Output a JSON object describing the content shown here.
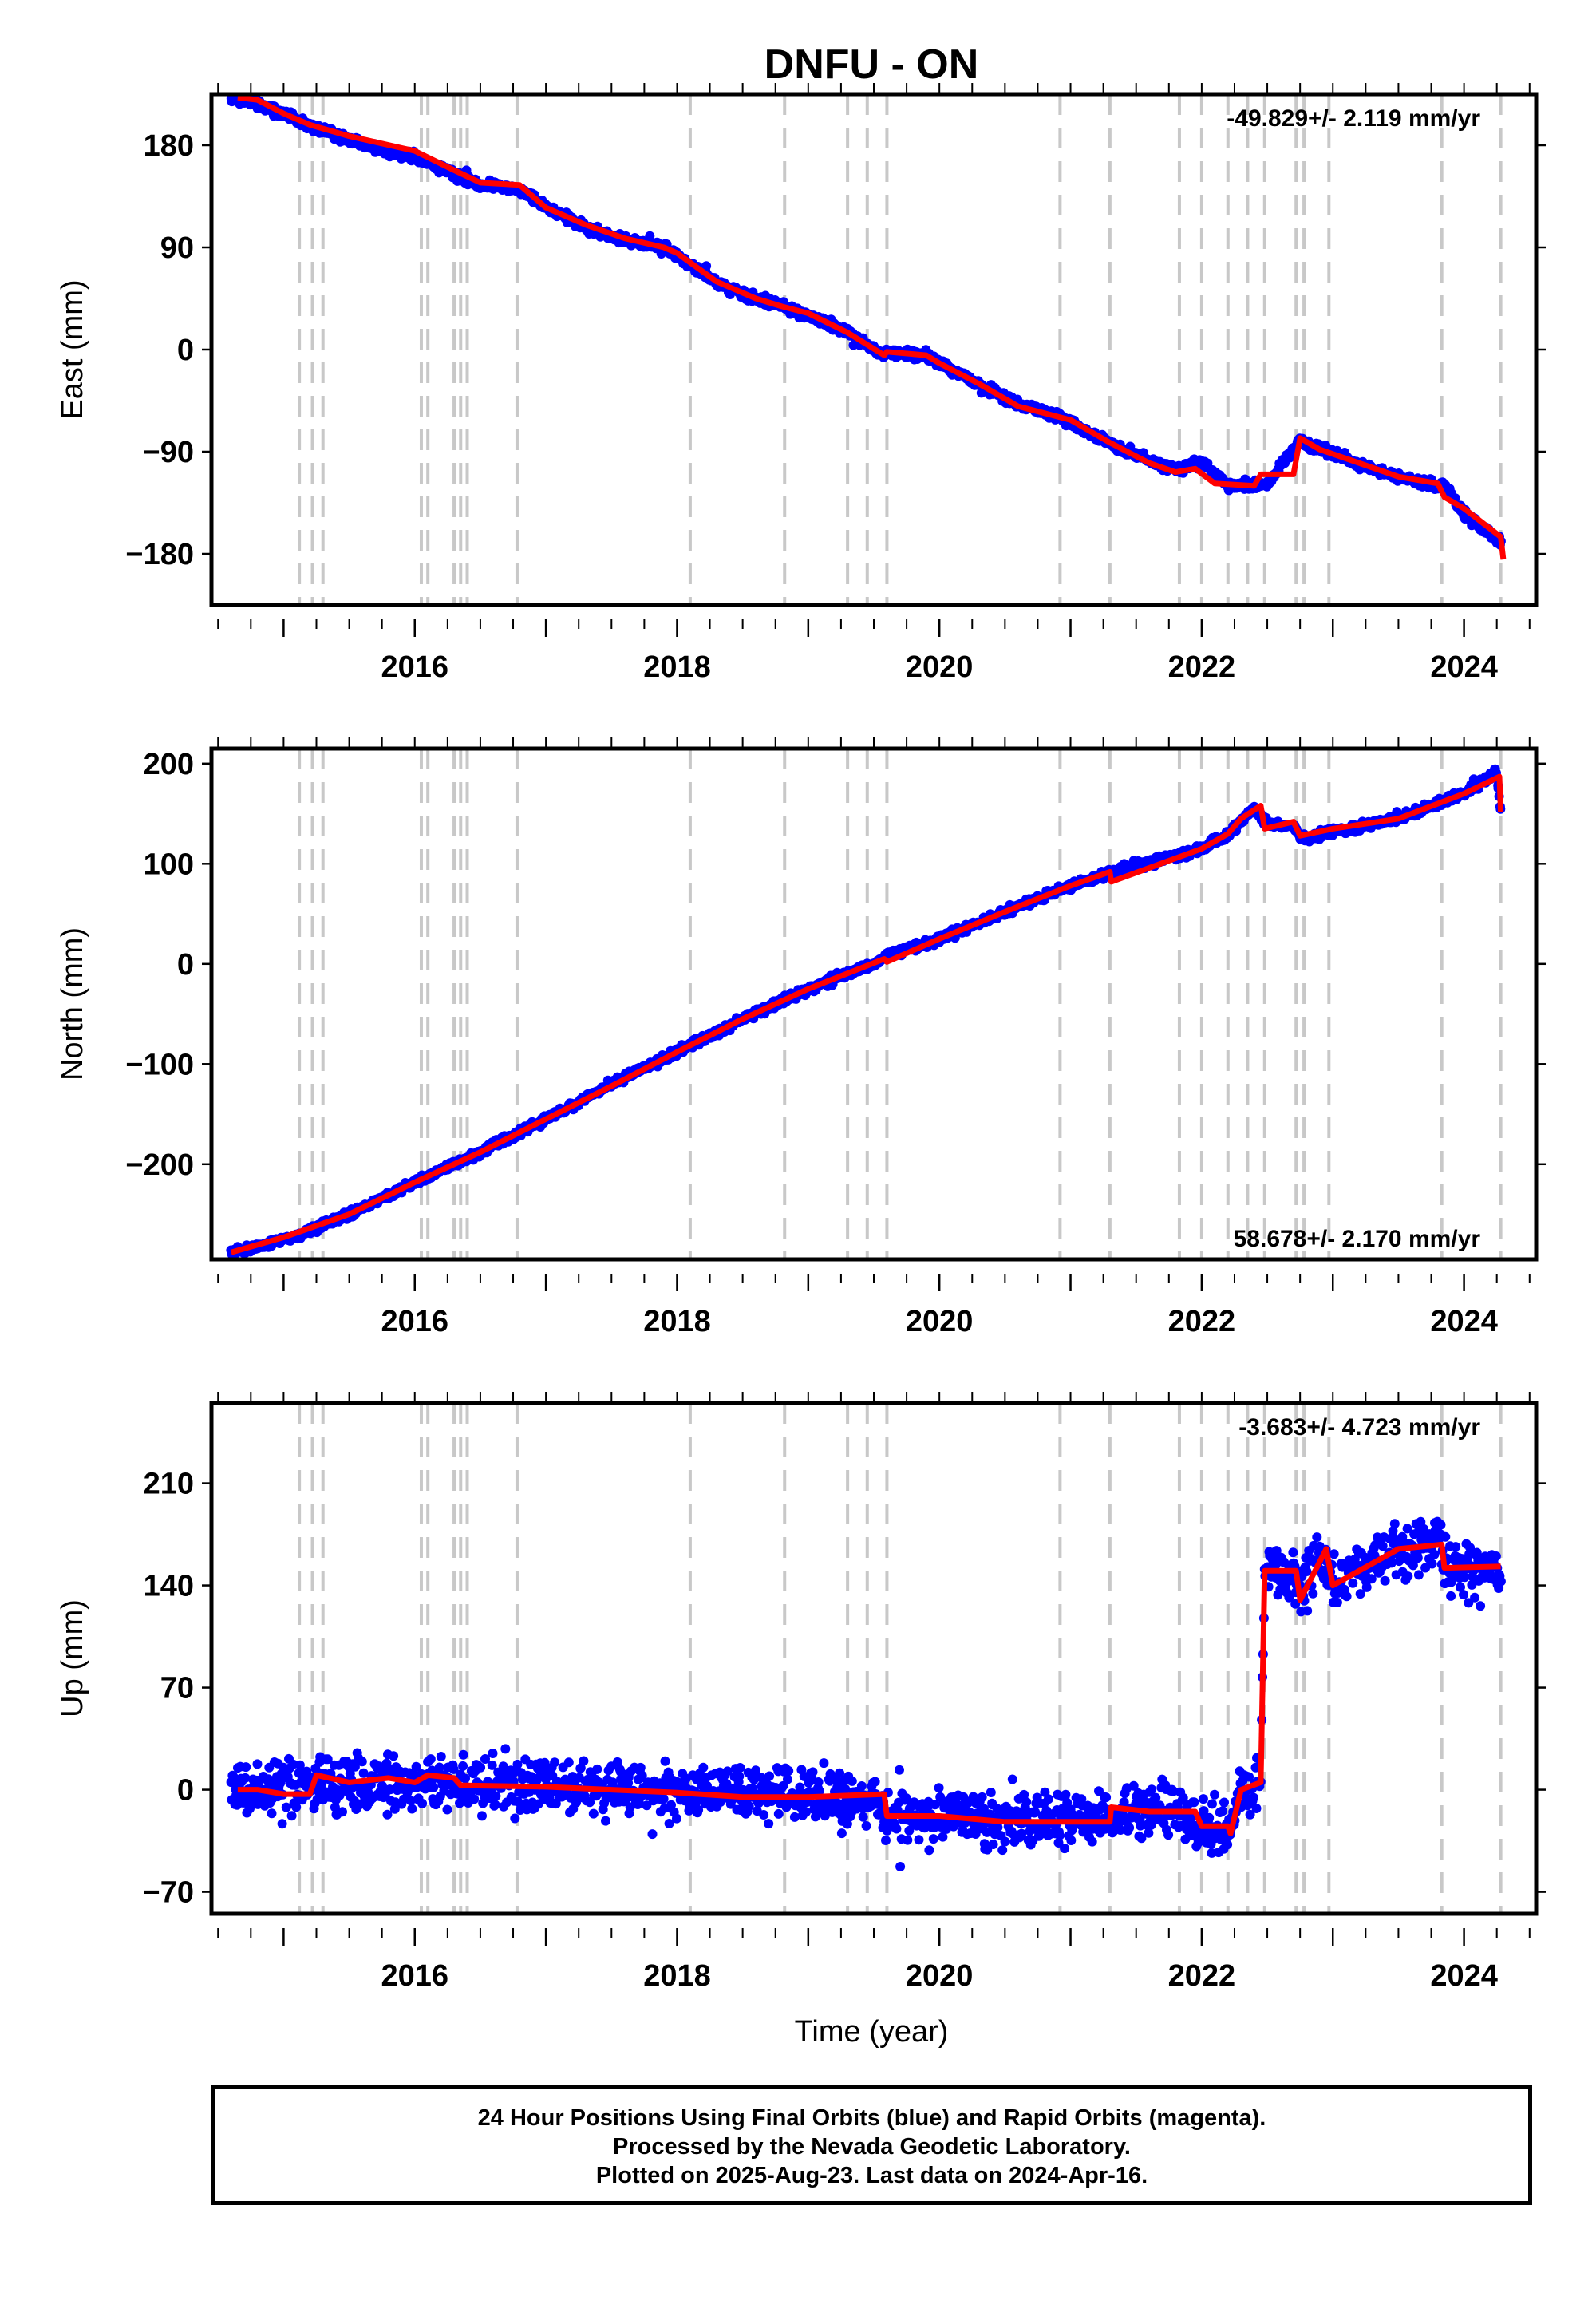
{
  "title": "DNFU - ON",
  "footer": {
    "line1": "24 Hour Positions Using Final Orbits (blue) and Rapid Orbits (magenta).",
    "line2": "Processed by the Nevada Geodetic Laboratory.",
    "line3": "Plotted on 2025-Aug-23. Last data on 2024-Apr-16."
  },
  "colors": {
    "observations": "#0000ff",
    "model": "#ff0000",
    "event_lines": "#c8c8c8"
  },
  "chart_data": [
    {
      "type": "scatter",
      "component": "east",
      "ylabel": "East (mm)",
      "xlabel": "",
      "rate_text": "-49.829+/- 2.119 mm/yr",
      "rate_position": "top-right",
      "xlim": [
        2014.45,
        2024.55
      ],
      "ylim": [
        -225,
        225
      ],
      "yticks": [
        180,
        90,
        0,
        -90,
        -180
      ],
      "ytick_labels": [
        "180",
        "90",
        "0",
        "−90",
        "−180"
      ],
      "xticks": [
        2016,
        2018,
        2020,
        2022,
        2024
      ],
      "xtick_labels": [
        "2016",
        "2018",
        "2020",
        "2022",
        "2024"
      ],
      "grid": false,
      "series": [
        {
          "role": "observations",
          "noise": 4,
          "points": [
            [
              2014.6,
              222
            ],
            [
              2014.8,
              216
            ],
            [
              2015.0,
              208
            ],
            [
              2015.2,
              197
            ],
            [
              2015.5,
              185
            ],
            [
              2015.8,
              175
            ],
            [
              2016.0,
              170
            ],
            [
              2016.3,
              155
            ],
            [
              2016.5,
              145
            ],
            [
              2016.8,
              142
            ],
            [
              2017.0,
              125
            ],
            [
              2017.3,
              108
            ],
            [
              2017.6,
              96
            ],
            [
              2017.9,
              90
            ],
            [
              2018.0,
              83
            ],
            [
              2018.3,
              58
            ],
            [
              2018.6,
              45
            ],
            [
              2018.8,
              38
            ],
            [
              2019.0,
              30
            ],
            [
              2019.3,
              15
            ],
            [
              2019.58,
              -5
            ],
            [
              2019.6,
              -2
            ],
            [
              2019.9,
              -5
            ],
            [
              2020.0,
              -12
            ],
            [
              2020.3,
              -30
            ],
            [
              2020.6,
              -48
            ],
            [
              2020.9,
              -58
            ],
            [
              2021.0,
              -65
            ],
            [
              2021.3,
              -82
            ],
            [
              2021.6,
              -98
            ],
            [
              2021.8,
              -105
            ],
            [
              2022.0,
              -100
            ],
            [
              2022.2,
              -120
            ],
            [
              2022.5,
              -118
            ],
            [
              2022.75,
              -80
            ],
            [
              2023.0,
              -92
            ],
            [
              2023.3,
              -105
            ],
            [
              2023.6,
              -115
            ],
            [
              2023.85,
              -120
            ],
            [
              2024.0,
              -145
            ],
            [
              2024.28,
              -170
            ]
          ]
        },
        {
          "role": "model",
          "points": [
            [
              2014.65,
              222
            ],
            [
              2014.8,
              220
            ],
            [
              2015.0,
              208
            ],
            [
              2015.2,
              198
            ],
            [
              2015.5,
              188
            ],
            [
              2016.0,
              175
            ],
            [
              2016.3,
              158
            ],
            [
              2016.5,
              147
            ],
            [
              2016.8,
              145
            ],
            [
              2017.0,
              125
            ],
            [
              2017.3,
              110
            ],
            [
              2017.6,
              98
            ],
            [
              2017.9,
              90
            ],
            [
              2018.0,
              85
            ],
            [
              2018.3,
              60
            ],
            [
              2018.6,
              45
            ],
            [
              2018.8,
              38
            ],
            [
              2019.0,
              32
            ],
            [
              2019.3,
              15
            ],
            [
              2019.58,
              -5
            ],
            [
              2019.6,
              -2
            ],
            [
              2019.9,
              -5
            ],
            [
              2020.0,
              -12
            ],
            [
              2020.3,
              -30
            ],
            [
              2020.6,
              -50
            ],
            [
              2021.0,
              -62
            ],
            [
              2021.3,
              -82
            ],
            [
              2021.6,
              -100
            ],
            [
              2021.8,
              -108
            ],
            [
              2021.95,
              -105
            ],
            [
              2022.1,
              -118
            ],
            [
              2022.4,
              -120
            ],
            [
              2022.45,
              -110
            ],
            [
              2022.7,
              -110
            ],
            [
              2022.75,
              -78
            ],
            [
              2022.9,
              -88
            ],
            [
              2023.2,
              -100
            ],
            [
              2023.5,
              -112
            ],
            [
              2023.8,
              -118
            ],
            [
              2023.85,
              -130
            ],
            [
              2024.0,
              -140
            ],
            [
              2024.28,
              -165
            ],
            [
              2024.3,
              -185
            ]
          ]
        }
      ],
      "event_lines": [
        2015.12,
        2015.22,
        2015.3,
        2016.05,
        2016.1,
        2016.3,
        2016.35,
        2016.4,
        2016.78,
        2018.1,
        2018.82,
        2019.3,
        2019.45,
        2019.6,
        2020.92,
        2021.3,
        2021.83,
        2022.0,
        2022.2,
        2022.35,
        2022.48,
        2022.72,
        2022.78,
        2022.97,
        2023.83,
        2024.28
      ]
    },
    {
      "type": "scatter",
      "component": "north",
      "ylabel": "North (mm)",
      "xlabel": "",
      "rate_text": "58.678+/- 2.170 mm/yr",
      "rate_position": "bottom-right",
      "xlim": [
        2014.45,
        2024.55
      ],
      "ylim": [
        -295,
        215
      ],
      "yticks": [
        200,
        100,
        0,
        -100,
        -200
      ],
      "ytick_labels": [
        "200",
        "100",
        "0",
        "−100",
        "−200"
      ],
      "xticks": [
        2016,
        2018,
        2020,
        2022,
        2024
      ],
      "xtick_labels": [
        "2016",
        "2018",
        "2020",
        "2022",
        "2024"
      ],
      "grid": false,
      "series": [
        {
          "role": "observations",
          "noise": 4,
          "points": [
            [
              2014.6,
              -288
            ],
            [
              2014.8,
              -283
            ],
            [
              2015.1,
              -272
            ],
            [
              2015.5,
              -250
            ],
            [
              2016.0,
              -218
            ],
            [
              2016.5,
              -188
            ],
            [
              2017.0,
              -155
            ],
            [
              2017.5,
              -120
            ],
            [
              2018.0,
              -88
            ],
            [
              2018.5,
              -55
            ],
            [
              2019.0,
              -25
            ],
            [
              2019.5,
              0
            ],
            [
              2019.6,
              8
            ],
            [
              2020.0,
              25
            ],
            [
              2020.5,
              52
            ],
            [
              2021.0,
              78
            ],
            [
              2021.3,
              90
            ],
            [
              2021.5,
              98
            ],
            [
              2022.0,
              115
            ],
            [
              2022.2,
              130
            ],
            [
              2022.4,
              155
            ],
            [
              2022.5,
              140
            ],
            [
              2022.7,
              138
            ],
            [
              2022.75,
              125
            ],
            [
              2023.0,
              132
            ],
            [
              2023.5,
              145
            ],
            [
              2024.0,
              170
            ],
            [
              2024.25,
              192
            ],
            [
              2024.28,
              152
            ]
          ]
        },
        {
          "role": "model",
          "points": [
            [
              2014.6,
              -288
            ],
            [
              2015.0,
              -273
            ],
            [
              2015.5,
              -250
            ],
            [
              2016.0,
              -218
            ],
            [
              2016.5,
              -188
            ],
            [
              2017.0,
              -155
            ],
            [
              2017.5,
              -122
            ],
            [
              2018.0,
              -88
            ],
            [
              2018.5,
              -55
            ],
            [
              2019.0,
              -25
            ],
            [
              2019.58,
              5
            ],
            [
              2019.6,
              2
            ],
            [
              2020.0,
              25
            ],
            [
              2020.5,
              52
            ],
            [
              2021.0,
              78
            ],
            [
              2021.3,
              92
            ],
            [
              2021.31,
              82
            ],
            [
              2022.0,
              115
            ],
            [
              2022.2,
              130
            ],
            [
              2022.3,
              145
            ],
            [
              2022.45,
              158
            ],
            [
              2022.48,
              135
            ],
            [
              2022.7,
              142
            ],
            [
              2022.75,
              128
            ],
            [
              2023.0,
              135
            ],
            [
              2023.5,
              145
            ],
            [
              2024.0,
              170
            ],
            [
              2024.27,
              187
            ],
            [
              2024.28,
              152
            ]
          ]
        }
      ],
      "event_lines": [
        2015.12,
        2015.22,
        2015.3,
        2016.05,
        2016.1,
        2016.3,
        2016.35,
        2016.4,
        2016.78,
        2018.1,
        2018.82,
        2019.3,
        2019.45,
        2019.6,
        2020.92,
        2021.3,
        2021.83,
        2022.0,
        2022.2,
        2022.35,
        2022.48,
        2022.72,
        2022.78,
        2022.97,
        2023.83,
        2024.28
      ]
    },
    {
      "type": "scatter",
      "component": "up",
      "ylabel": "Up (mm)",
      "xlabel": "Time (year)",
      "rate_text": "-3.683+/- 4.723 mm/yr",
      "rate_position": "top-right",
      "xlim": [
        2014.45,
        2024.55
      ],
      "ylim": [
        -85,
        265
      ],
      "yticks": [
        210,
        140,
        70,
        0,
        -70
      ],
      "ytick_labels": [
        "210",
        "140",
        "70",
        "0",
        "−70"
      ],
      "xticks": [
        2016,
        2018,
        2020,
        2022,
        2024
      ],
      "xtick_labels": [
        "2016",
        "2018",
        "2020",
        "2022",
        "2024"
      ],
      "grid": false,
      "series": [
        {
          "role": "observations",
          "noise": 18,
          "points": [
            [
              2014.6,
              0
            ],
            [
              2015.0,
              -2
            ],
            [
              2015.3,
              5
            ],
            [
              2015.6,
              5
            ],
            [
              2016.0,
              5
            ],
            [
              2016.5,
              5
            ],
            [
              2017.0,
              2
            ],
            [
              2017.5,
              0
            ],
            [
              2018.0,
              -2
            ],
            [
              2018.5,
              -3
            ],
            [
              2019.0,
              -5
            ],
            [
              2019.5,
              -5
            ],
            [
              2019.6,
              -18
            ],
            [
              2020.0,
              -18
            ],
            [
              2020.5,
              -22
            ],
            [
              2021.0,
              -22
            ],
            [
              2021.3,
              -15
            ],
            [
              2021.8,
              -15
            ],
            [
              2021.95,
              -22
            ],
            [
              2022.2,
              -25
            ],
            [
              2022.3,
              0
            ],
            [
              2022.45,
              5
            ],
            [
              2022.48,
              150
            ],
            [
              2022.7,
              148
            ],
            [
              2022.75,
              135
            ],
            [
              2022.9,
              158
            ],
            [
              2023.0,
              142
            ],
            [
              2023.5,
              165
            ],
            [
              2023.83,
              170
            ],
            [
              2023.85,
              152
            ],
            [
              2024.28,
              153
            ]
          ]
        },
        {
          "role": "model",
          "points": [
            [
              2014.65,
              0
            ],
            [
              2014.8,
              0
            ],
            [
              2015.0,
              -3
            ],
            [
              2015.2,
              -3
            ],
            [
              2015.25,
              10
            ],
            [
              2015.5,
              5
            ],
            [
              2015.8,
              8
            ],
            [
              2016.0,
              5
            ],
            [
              2016.1,
              10
            ],
            [
              2016.3,
              8
            ],
            [
              2016.35,
              3
            ],
            [
              2017.0,
              2
            ],
            [
              2017.5,
              0
            ],
            [
              2018.0,
              -2
            ],
            [
              2018.5,
              -5
            ],
            [
              2019.0,
              -5
            ],
            [
              2019.58,
              -3
            ],
            [
              2019.6,
              -18
            ],
            [
              2020.0,
              -18
            ],
            [
              2020.5,
              -22
            ],
            [
              2021.0,
              -22
            ],
            [
              2021.3,
              -22
            ],
            [
              2021.31,
              -12
            ],
            [
              2021.6,
              -15
            ],
            [
              2021.95,
              -15
            ],
            [
              2022.0,
              -25
            ],
            [
              2022.2,
              -25
            ],
            [
              2022.22,
              -30
            ],
            [
              2022.3,
              0
            ],
            [
              2022.45,
              5
            ],
            [
              2022.48,
              150
            ],
            [
              2022.72,
              150
            ],
            [
              2022.75,
              130
            ],
            [
              2022.95,
              165
            ],
            [
              2023.0,
              140
            ],
            [
              2023.5,
              165
            ],
            [
              2023.83,
              168
            ],
            [
              2023.85,
              152
            ],
            [
              2024.28,
              153
            ]
          ]
        }
      ],
      "event_lines": [
        2015.12,
        2015.22,
        2015.3,
        2016.05,
        2016.1,
        2016.3,
        2016.35,
        2016.4,
        2016.78,
        2018.1,
        2018.82,
        2019.3,
        2019.45,
        2019.6,
        2020.92,
        2021.3,
        2021.83,
        2022.0,
        2022.2,
        2022.35,
        2022.48,
        2022.72,
        2022.78,
        2022.97,
        2023.83,
        2024.28
      ]
    }
  ]
}
